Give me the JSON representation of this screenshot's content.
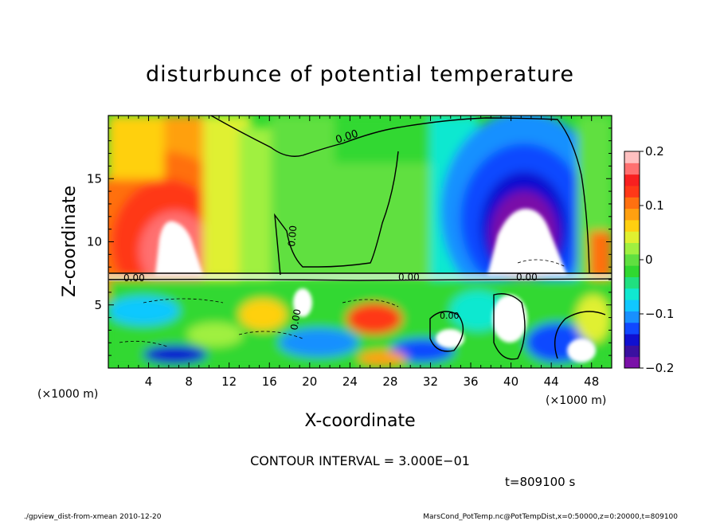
{
  "chart_data": {
    "type": "heatmap",
    "title": "disturbunce of potential temperature",
    "xlabel": "X-coordinate",
    "ylabel": "Z-coordinate",
    "x_unit_left": "(×1000 m)",
    "x_unit_right": "(×1000 m)",
    "y_unit": "(×1000 m)",
    "xlim": [
      0,
      50
    ],
    "ylim": [
      0,
      20
    ],
    "x_ticks": [
      "4",
      "8",
      "12",
      "16",
      "20",
      "24",
      "28",
      "32",
      "36",
      "40",
      "44",
      "48"
    ],
    "x_tick_values": [
      4,
      8,
      12,
      16,
      20,
      24,
      28,
      32,
      36,
      40,
      44,
      48
    ],
    "y_ticks": [
      "5",
      "10",
      "15"
    ],
    "y_tick_values": [
      5,
      10,
      15
    ],
    "colorbar": {
      "ticks": [
        "0.2",
        "0.1",
        "0",
        "−0.1",
        "−0.2"
      ],
      "tick_values": [
        0.2,
        0.1,
        0,
        -0.1,
        -0.2
      ],
      "range": [
        -0.2,
        0.2
      ],
      "colors": [
        "#7a10a8",
        "#3a10a0",
        "#1010d0",
        "#1048ff",
        "#1890ff",
        "#10c8ff",
        "#10e8d0",
        "#20e080",
        "#30d830",
        "#60e040",
        "#a0f040",
        "#e0f030",
        "#ffd010",
        "#ffa010",
        "#ff7010",
        "#ff3818",
        "#f82020",
        "#ff7070",
        "#ffc0c0"
      ]
    },
    "contour_labels": [
      "0.00",
      "0.00",
      "0.00",
      "0.00",
      "0.00",
      "0.00",
      "0.00"
    ],
    "contour_interval_text": "CONTOUR INTERVAL = 3.000E−01",
    "time_text": "t=809100 s",
    "features": [
      {
        "name": "warm anomaly",
        "x": 6,
        "z": 10.5,
        "value": 0.2
      },
      {
        "name": "cold anomaly",
        "x": 40,
        "z": 10.5,
        "value": -0.2
      }
    ]
  },
  "footer": {
    "left": "./gpview_dist-from-xmean  2010-12-20",
    "right": "MarsCond_PotTemp.nc@PotTempDist,x=0:50000,z=0:20000,t=809100"
  }
}
